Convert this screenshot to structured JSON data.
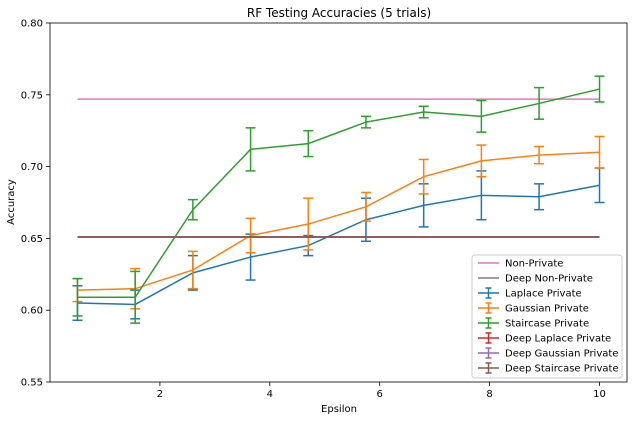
{
  "chart_data": {
    "type": "line",
    "title": "RF Testing Accuracies (5 trials)",
    "xlabel": "Epsilon",
    "ylabel": "Accuracy",
    "xlim": [
      0,
      10.5
    ],
    "ylim": [
      0.55,
      0.8
    ],
    "xticks": [
      2,
      4,
      6,
      8,
      10
    ],
    "yticks": [
      0.55,
      0.6,
      0.65,
      0.7,
      0.75,
      0.8
    ],
    "xtick_labels": [
      "2",
      "4",
      "6",
      "8",
      "10"
    ],
    "ytick_labels": [
      "0.55",
      "0.60",
      "0.65",
      "0.70",
      "0.75",
      "0.80"
    ],
    "grid": false,
    "legend_position": "lower-right",
    "x": [
      0.5,
      1.55,
      2.6,
      3.65,
      4.7,
      5.75,
      6.8,
      7.85,
      8.9,
      10.0
    ],
    "series": [
      {
        "name": "Non-Private",
        "kind": "line",
        "color": "#e377c2",
        "values": [
          0.747,
          0.747,
          0.747,
          0.747,
          0.747,
          0.747,
          0.747,
          0.747,
          0.747,
          0.747
        ]
      },
      {
        "name": "Deep Non-Private",
        "kind": "line",
        "color": "#7f7f7f",
        "values": [
          0.651,
          0.651,
          0.651,
          0.651,
          0.651,
          0.651,
          0.651,
          0.651,
          0.651,
          0.651
        ]
      },
      {
        "name": "Laplace Private",
        "kind": "errorbar",
        "color": "#1f77b4",
        "values": [
          0.605,
          0.604,
          0.626,
          0.637,
          0.645,
          0.663,
          0.673,
          0.68,
          0.679,
          0.687
        ],
        "errors": [
          0.012,
          0.01,
          0.012,
          0.016,
          0.007,
          0.015,
          0.015,
          0.017,
          0.009,
          0.012
        ]
      },
      {
        "name": "Gaussian Private",
        "kind": "errorbar",
        "color": "#ff7f0e",
        "values": [
          0.614,
          0.615,
          0.628,
          0.652,
          0.66,
          0.672,
          0.693,
          0.704,
          0.708,
          0.71
        ],
        "errors": [
          0.008,
          0.014,
          0.013,
          0.012,
          0.018,
          0.01,
          0.012,
          0.011,
          0.006,
          0.011
        ]
      },
      {
        "name": "Staircase Private",
        "kind": "errorbar",
        "color": "#2ca02c",
        "values": [
          0.609,
          0.609,
          0.67,
          0.712,
          0.716,
          0.731,
          0.738,
          0.735,
          0.744,
          0.754
        ],
        "errors": [
          0.013,
          0.018,
          0.007,
          0.015,
          0.009,
          0.004,
          0.004,
          0.011,
          0.011,
          0.009
        ]
      },
      {
        "name": "Deep Laplace Private",
        "kind": "errorbar",
        "color": "#d62728",
        "values": [
          0.651,
          0.651,
          0.651,
          0.651,
          0.651,
          0.651,
          0.651,
          0.651,
          0.651,
          0.651
        ],
        "errors": [
          0,
          0,
          0,
          0,
          0,
          0,
          0,
          0,
          0,
          0
        ]
      },
      {
        "name": "Deep Gaussian Private",
        "kind": "errorbar",
        "color": "#9467bd",
        "values": [
          0.651,
          0.651,
          0.651,
          0.651,
          0.651,
          0.651,
          0.651,
          0.651,
          0.651,
          0.651
        ],
        "errors": [
          0,
          0,
          0,
          0,
          0,
          0,
          0,
          0,
          0,
          0
        ]
      },
      {
        "name": "Deep Staircase Private",
        "kind": "errorbar",
        "color": "#8c564b",
        "values": [
          0.651,
          0.651,
          0.651,
          0.651,
          0.651,
          0.651,
          0.651,
          0.651,
          0.651,
          0.651
        ],
        "errors": [
          0,
          0,
          0,
          0,
          0,
          0,
          0,
          0,
          0,
          0
        ]
      }
    ]
  }
}
